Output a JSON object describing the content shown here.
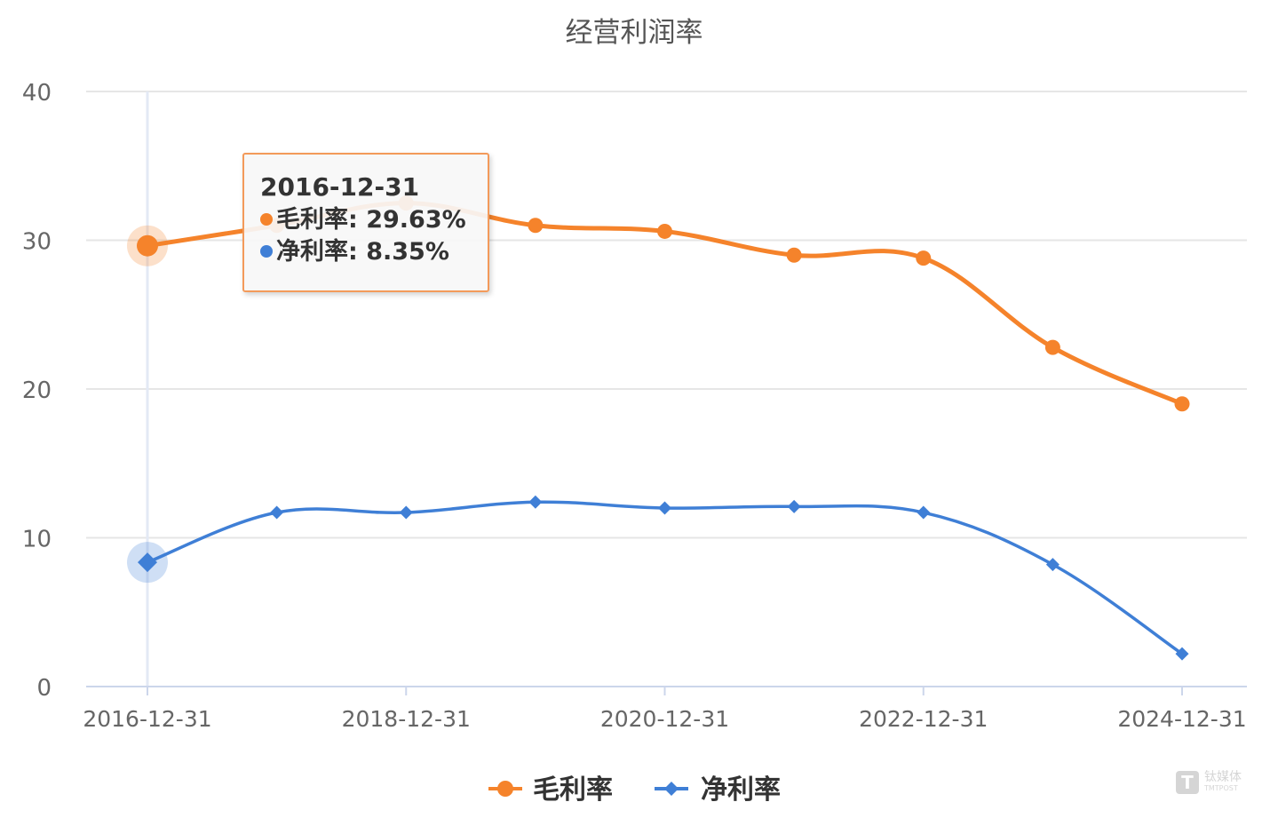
{
  "chart_data": {
    "type": "line",
    "title": "经营利润率",
    "xlabel": "",
    "ylabel": "",
    "x": [
      "2016-12-31",
      "2017-12-31",
      "2018-12-31",
      "2019-12-31",
      "2020-12-31",
      "2021-12-31",
      "2022-12-31",
      "2023-12-31",
      "2024-12-31"
    ],
    "x_tick_labels": [
      "2016-12-31",
      "2018-12-31",
      "2020-12-31",
      "2022-12-31",
      "2024-12-31"
    ],
    "y_tick_labels": [
      "0",
      "10",
      "20",
      "30",
      "40"
    ],
    "ylim": [
      0,
      40
    ],
    "grid": true,
    "legend_position": "bottom-center",
    "series": [
      {
        "name": "毛利率",
        "color": "#f5832b",
        "marker": "circle",
        "values": [
          29.63,
          31.0,
          32.5,
          31.0,
          30.6,
          29.0,
          28.8,
          22.8,
          19.0
        ]
      },
      {
        "name": "净利率",
        "color": "#3f7fd6",
        "marker": "diamond",
        "values": [
          8.35,
          11.7,
          11.7,
          12.4,
          12.0,
          12.1,
          11.7,
          8.2,
          2.2
        ]
      }
    ],
    "tooltip": {
      "date": "2016-12-31",
      "rows": [
        {
          "label": "毛利率",
          "value": "29.63%",
          "color": "#f5832b"
        },
        {
          "label": "净利率",
          "value": "8.35%",
          "color": "#3f7fd6"
        }
      ]
    },
    "highlight_index": 0
  },
  "watermark": {
    "logo_letter": "T",
    "text": "钛媒体",
    "sub": "TMTPOST"
  }
}
